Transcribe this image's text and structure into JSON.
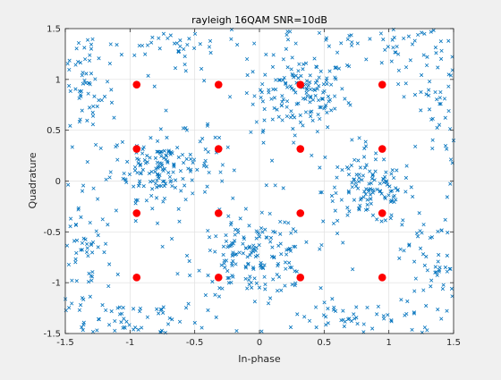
{
  "chart_data": {
    "type": "scatter",
    "title": "rayleigh 16QAM SNR=10dB",
    "xlabel": "In-phase",
    "ylabel": "Quadrature",
    "xlim": [
      -1.5,
      1.5
    ],
    "ylim": [
      -1.5,
      1.5
    ],
    "xticks": [
      -1.5,
      -1,
      -0.5,
      0,
      0.5,
      1,
      1.5
    ],
    "yticks": [
      -1.5,
      -1,
      -0.5,
      0,
      0.5,
      1,
      1.5
    ],
    "xtick_labels": [
      "-1.5",
      "-1",
      "-0.5",
      "0",
      "0.5",
      "1",
      "1.5"
    ],
    "ytick_labels": [
      "-1.5",
      "-1",
      "-0.5",
      "0",
      "0.5",
      "1",
      "1.5"
    ],
    "grid": true,
    "colors": {
      "received": "#0072bd",
      "constellation": "#ff0000",
      "grid": "#dfdfdf",
      "plot_bg": "#ffffff",
      "figure_bg": "#f0f0f0"
    },
    "series": [
      {
        "marker": "x",
        "clusters": [
          {
            "center": [
              0.32,
              0.85
            ],
            "spread": [
              0.18,
              0.18
            ],
            "count": 140
          },
          {
            "center": [
              -0.75,
              0.15
            ],
            "spread": [
              0.2,
              0.16
            ],
            "count": 150
          },
          {
            "center": [
              0.85,
              -0.1
            ],
            "spread": [
              0.18,
              0.16
            ],
            "count": 120
          },
          {
            "center": [
              -0.05,
              -0.75
            ],
            "spread": [
              0.22,
              0.18
            ],
            "count": 160
          },
          {
            "center": [
              -1.35,
              0.9
            ],
            "spread": [
              0.12,
              0.3
            ],
            "count": 60
          },
          {
            "center": [
              -1.35,
              -0.7
            ],
            "spread": [
              0.12,
              0.35
            ],
            "count": 60
          },
          {
            "center": [
              -1.05,
              -1.35
            ],
            "spread": [
              0.3,
              0.1
            ],
            "count": 60
          },
          {
            "center": [
              1.35,
              0.85
            ],
            "spread": [
              0.12,
              0.35
            ],
            "count": 60
          },
          {
            "center": [
              1.35,
              -0.8
            ],
            "spread": [
              0.12,
              0.3
            ],
            "count": 60
          },
          {
            "center": [
              0.8,
              -1.35
            ],
            "spread": [
              0.35,
              0.1
            ],
            "count": 50
          },
          {
            "center": [
              0.9,
              1.35
            ],
            "spread": [
              0.35,
              0.1
            ],
            "count": 50
          },
          {
            "center": [
              -0.7,
              1.35
            ],
            "spread": [
              0.35,
              0.1
            ],
            "count": 40
          },
          {
            "center": [
              0,
              0
            ],
            "spread": [
              0.9,
              0.9
            ],
            "count": 120
          }
        ]
      },
      {
        "marker": "o",
        "points": [
          [
            -0.9487,
            0.9487
          ],
          [
            -0.3162,
            0.9487
          ],
          [
            0.3162,
            0.9487
          ],
          [
            0.9487,
            0.9487
          ],
          [
            -0.9487,
            0.3162
          ],
          [
            -0.3162,
            0.3162
          ],
          [
            0.3162,
            0.3162
          ],
          [
            0.9487,
            0.3162
          ],
          [
            -0.9487,
            -0.3162
          ],
          [
            -0.3162,
            -0.3162
          ],
          [
            0.3162,
            -0.3162
          ],
          [
            0.9487,
            -0.3162
          ],
          [
            -0.9487,
            -0.9487
          ],
          [
            -0.3162,
            -0.9487
          ],
          [
            0.3162,
            -0.9487
          ],
          [
            0.9487,
            -0.9487
          ]
        ]
      }
    ]
  }
}
